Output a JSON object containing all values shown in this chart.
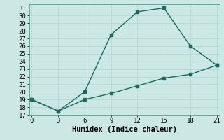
{
  "xlabel": "Humidex (Indice chaleur)",
  "bg_color": "#cce8e4",
  "line_color": "#1a6b5e",
  "grid_color": "#b8d8d4",
  "x_upper": [
    0,
    3,
    6,
    9,
    12,
    15,
    18,
    21
  ],
  "y_upper": [
    19,
    17.5,
    20,
    27.5,
    30.5,
    31,
    26,
    23.5
  ],
  "x_lower": [
    0,
    3,
    6,
    9,
    12,
    15,
    18,
    21
  ],
  "y_lower": [
    19,
    17.5,
    19.0,
    19.8,
    20.8,
    21.8,
    22.3,
    23.5
  ],
  "xlim": [
    -0.3,
    21.3
  ],
  "ylim": [
    17,
    31.5
  ],
  "xticks": [
    0,
    3,
    6,
    9,
    12,
    15,
    18,
    21
  ],
  "yticks": [
    17,
    18,
    19,
    20,
    21,
    22,
    23,
    24,
    25,
    26,
    27,
    28,
    29,
    30,
    31
  ],
  "tick_fontsize": 6.5,
  "label_fontsize": 7.5
}
